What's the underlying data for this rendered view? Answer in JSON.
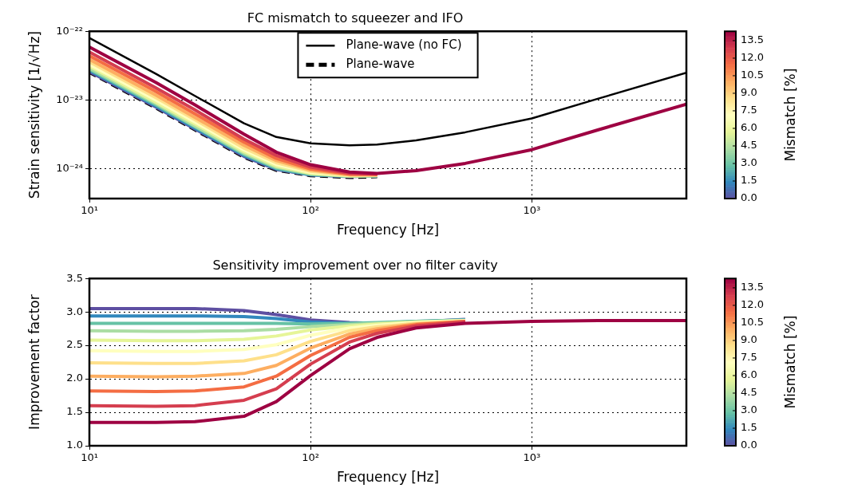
{
  "chart_data": [
    {
      "type": "line",
      "title": "FC mismatch to squeezer and IFO",
      "xlabel": "Frequency [Hz]",
      "ylabel": "Strain sensitivity [1/√Hz]",
      "clabel": "Mismatch [%]",
      "log": "xy",
      "grid": true,
      "legend": "top",
      "x": [
        10,
        20,
        30,
        50,
        70,
        100,
        150,
        200,
        300,
        500,
        1000,
        2000,
        5000
      ],
      "xlim": [
        10,
        5000
      ],
      "xticks": [
        {
          "value": 10,
          "label": "10¹"
        },
        {
          "value": 100,
          "label": "10²"
        },
        {
          "value": 1000,
          "label": "10³"
        }
      ],
      "ylim": [
        3.7e-25,
        1e-22
      ],
      "yticks": [
        {
          "value": 1e-24,
          "label": "10⁻²⁴"
        },
        {
          "value": 1e-23,
          "label": "10⁻²³"
        },
        {
          "value": 1e-22,
          "label": "10⁻²²"
        }
      ],
      "clim": [
        0,
        14.3
      ],
      "cticks": [
        {
          "value": 0,
          "label": "0.0"
        },
        {
          "value": 1.5,
          "label": "1.5"
        },
        {
          "value": 3,
          "label": "3.0"
        },
        {
          "value": 4.5,
          "label": "4.5"
        },
        {
          "value": 6,
          "label": "6.0"
        },
        {
          "value": 7.5,
          "label": "7.5"
        },
        {
          "value": 9,
          "label": "9.0"
        },
        {
          "value": 10.5,
          "label": "10.5"
        },
        {
          "value": 12,
          "label": "12.0"
        },
        {
          "value": 13.5,
          "label": "13.5"
        }
      ],
      "series": [
        {
          "name": "Plane-wave (no FC)",
          "color": "#000000",
          "line_style": "solid",
          "values": [
            8e-23,
            2.4e-23,
            1.15e-23,
            4.6e-24,
            2.9e-24,
            2.35e-24,
            2.2e-24,
            2.25e-24,
            2.6e-24,
            3.4e-24,
            5.4e-24,
            1.05e-23,
            2.5e-23
          ]
        },
        {
          "name": "Plane-wave",
          "color": "#000000",
          "line_style": "dashed",
          "values": [
            2.6e-23,
            7.9e-24,
            3.8e-24,
            1.52e-24,
            9.8e-25,
            8.2e-25,
            7.7e-25,
            7.9e-25,
            null,
            null,
            null,
            null,
            null
          ]
        },
        {
          "color": "#5e4fa2",
          "values": [
            2.6e-23,
            7.9e-24,
            3.8e-24,
            1.52e-24,
            9.8e-25,
            8.2e-25,
            7.7e-25,
            7.9e-25,
            null,
            null,
            null,
            null,
            null
          ]
        },
        {
          "color": "#3288bd",
          "values": [
            2.7e-23,
            8.2e-24,
            3.9e-24,
            1.57e-24,
            1e-24,
            8.2e-25,
            7.8e-25,
            7.9e-25,
            null,
            null,
            null,
            null,
            null
          ]
        },
        {
          "color": "#66c2a5",
          "values": [
            2.8e-23,
            8.5e-24,
            4.1e-24,
            1.63e-24,
            1.02e-24,
            8.3e-25,
            7.8e-25,
            7.9e-25,
            null,
            null,
            null,
            null,
            null
          ]
        },
        {
          "color": "#abdda4",
          "values": [
            2.9e-23,
            8.9e-24,
            4.2e-24,
            1.69e-24,
            1.06e-24,
            8.5e-25,
            7.8e-25,
            7.9e-25,
            null,
            null,
            null,
            null,
            null
          ]
        },
        {
          "color": "#e6f598",
          "values": [
            3.1e-23,
            9.3e-24,
            4.5e-24,
            1.78e-24,
            1.1e-24,
            8.6e-25,
            7.9e-25,
            8e-25,
            null,
            null,
            null,
            null,
            null
          ]
        },
        {
          "color": "#ffffbf",
          "values": [
            3.3e-23,
            1e-23,
            4.8e-24,
            1.89e-24,
            1.16e-24,
            8.9e-25,
            8e-25,
            8e-25,
            null,
            null,
            null,
            null,
            null
          ]
        },
        {
          "color": "#fee08b",
          "values": [
            3.6e-23,
            1.08e-23,
            5.2e-24,
            2e-24,
            1.23e-24,
            9.2e-25,
            8.1e-25,
            8.1e-25,
            null,
            null,
            null,
            null,
            null
          ]
        },
        {
          "color": "#fdae61",
          "values": [
            3.9e-23,
            1.18e-23,
            5.6e-24,
            2.2e-24,
            1.32e-24,
            9.6e-25,
            8.2e-25,
            8.2e-25,
            null,
            null,
            null,
            null,
            null
          ]
        },
        {
          "color": "#f46d43",
          "values": [
            4.4e-23,
            1.33e-23,
            6.3e-24,
            2.45e-24,
            1.42e-24,
            1e-24,
            8.4e-25,
            8.3e-25,
            null,
            null,
            null,
            null,
            null
          ]
        },
        {
          "color": "#d53e4f",
          "values": [
            5e-23,
            1.5e-23,
            7.2e-24,
            2.7e-24,
            1.57e-24,
            1.06e-24,
            8.6e-25,
            8.4e-25,
            null,
            null,
            null,
            null,
            null
          ]
        },
        {
          "color": "#9e0142",
          "values": [
            5.9e-23,
            1.8e-23,
            8.5e-24,
            3.2e-24,
            1.75e-24,
            1.15e-24,
            9e-25,
            8.6e-25,
            9.4e-25,
            1.2e-24,
            1.9e-24,
            3.7e-24,
            8.7e-24
          ]
        }
      ]
    },
    {
      "type": "line",
      "title": "Sensitivity improvement over no filter cavity",
      "xlabel": "Frequency [Hz]",
      "ylabel": "Improvement factor",
      "clabel": "Mismatch [%]",
      "log": "x",
      "grid": true,
      "x": [
        10,
        20,
        30,
        50,
        70,
        100,
        150,
        200,
        300,
        500,
        1000,
        2000,
        5000
      ],
      "xlim": [
        10,
        5000
      ],
      "xticks": [
        {
          "value": 10,
          "label": "10¹"
        },
        {
          "value": 100,
          "label": "10²"
        },
        {
          "value": 1000,
          "label": "10³"
        }
      ],
      "ylim": [
        1,
        3.5
      ],
      "yticks": [
        {
          "value": 1,
          "label": "1.0"
        },
        {
          "value": 1.5,
          "label": "1.5"
        },
        {
          "value": 2,
          "label": "2.0"
        },
        {
          "value": 2.5,
          "label": "2.5"
        },
        {
          "value": 3,
          "label": "3.0"
        },
        {
          "value": 3.5,
          "label": "3.5"
        }
      ],
      "clim": [
        0,
        14.3
      ],
      "cticks": [
        {
          "value": 0,
          "label": "0.0"
        },
        {
          "value": 1.5,
          "label": "1.5"
        },
        {
          "value": 3,
          "label": "3.0"
        },
        {
          "value": 4.5,
          "label": "4.5"
        },
        {
          "value": 6,
          "label": "6.0"
        },
        {
          "value": 7.5,
          "label": "7.5"
        },
        {
          "value": 9,
          "label": "9.0"
        },
        {
          "value": 10.5,
          "label": "10.5"
        },
        {
          "value": 12,
          "label": "12.0"
        },
        {
          "value": 13.5,
          "label": "13.5"
        }
      ],
      "series": [
        {
          "color": "#5e4fa2",
          "values": [
            3.05,
            3.05,
            3.05,
            3.02,
            2.96,
            2.88,
            2.84,
            2.83,
            2.85,
            2.89,
            null,
            null,
            null
          ]
        },
        {
          "color": "#3288bd",
          "values": [
            2.94,
            2.94,
            2.94,
            2.93,
            2.9,
            2.85,
            2.83,
            2.83,
            2.86,
            2.88,
            null,
            null,
            null
          ]
        },
        {
          "color": "#66c2a5",
          "values": [
            2.83,
            2.83,
            2.83,
            2.83,
            2.83,
            2.82,
            2.83,
            2.84,
            2.86,
            2.88,
            null,
            null,
            null
          ]
        },
        {
          "color": "#abdda4",
          "values": [
            2.72,
            2.71,
            2.71,
            2.72,
            2.74,
            2.78,
            2.81,
            2.83,
            2.85,
            2.87,
            null,
            null,
            null
          ]
        },
        {
          "color": "#e6f598",
          "values": [
            2.58,
            2.57,
            2.57,
            2.59,
            2.64,
            2.73,
            2.79,
            2.82,
            2.85,
            2.87,
            null,
            null,
            null
          ]
        },
        {
          "color": "#ffffbf",
          "values": [
            2.42,
            2.41,
            2.41,
            2.44,
            2.51,
            2.65,
            2.76,
            2.8,
            2.84,
            2.87,
            null,
            null,
            null
          ]
        },
        {
          "color": "#fee08b",
          "values": [
            2.24,
            2.23,
            2.23,
            2.27,
            2.36,
            2.56,
            2.72,
            2.78,
            2.83,
            2.86,
            null,
            null,
            null
          ]
        },
        {
          "color": "#fdae61",
          "values": [
            2.04,
            2.03,
            2.04,
            2.08,
            2.2,
            2.46,
            2.67,
            2.75,
            2.82,
            2.86,
            null,
            null,
            null
          ]
        },
        {
          "color": "#f46d43",
          "values": [
            1.82,
            1.81,
            1.82,
            1.88,
            2.04,
            2.35,
            2.62,
            2.72,
            2.81,
            2.86,
            null,
            null,
            null
          ]
        },
        {
          "color": "#d53e4f",
          "values": [
            1.6,
            1.59,
            1.6,
            1.68,
            1.85,
            2.22,
            2.55,
            2.68,
            2.79,
            2.85,
            null,
            null,
            null
          ]
        },
        {
          "color": "#9e0142",
          "values": [
            1.35,
            1.35,
            1.36,
            1.44,
            1.66,
            2.05,
            2.45,
            2.62,
            2.76,
            2.83,
            2.86,
            2.87,
            2.87
          ]
        }
      ]
    }
  ]
}
